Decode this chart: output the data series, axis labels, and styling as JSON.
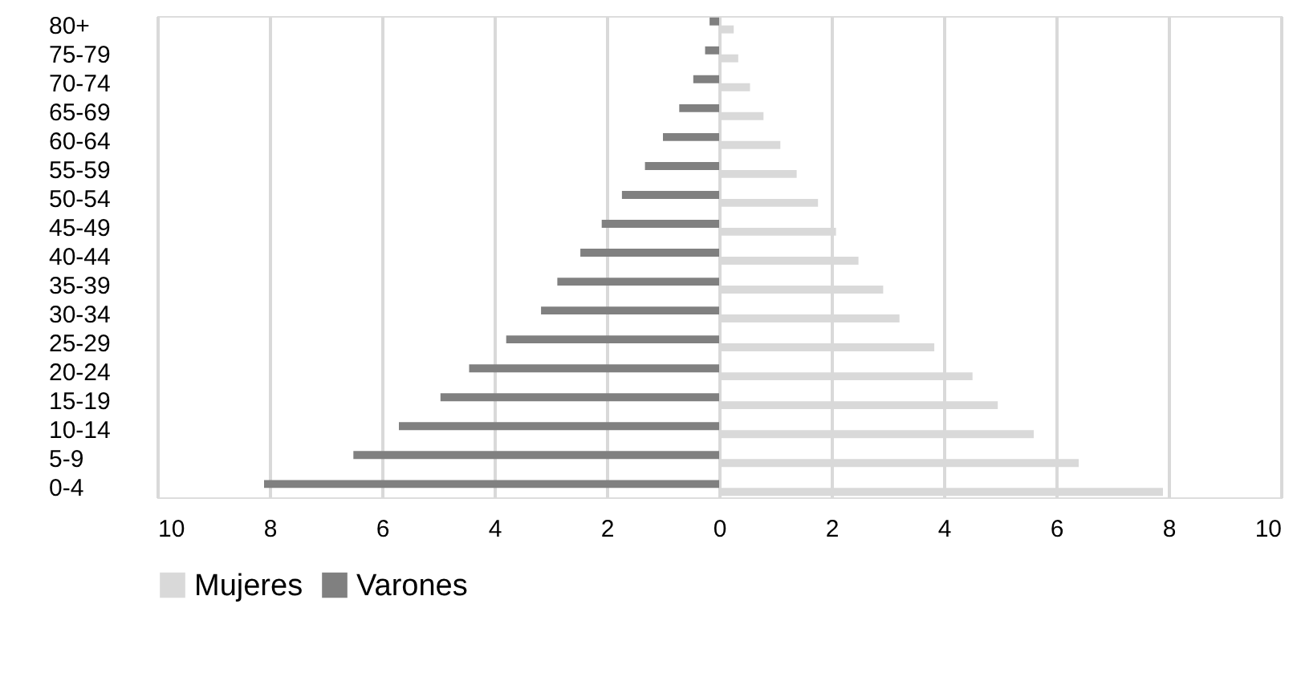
{
  "chart_data": {
    "type": "bar",
    "orientation": "horizontal",
    "categories": [
      "80+",
      "75-79",
      "70-74",
      "65-69",
      "60-64",
      "55-59",
      "50-54",
      "45-49",
      "40-44",
      "35-39",
      "30-34",
      "25-29",
      "20-24",
      "15-19",
      "10-14",
      "5-9",
      "0-4"
    ],
    "series": [
      {
        "name": "Mujeres",
        "color": "#d9d9d9",
        "values": [
          0.26,
          0.34,
          0.55,
          0.79,
          1.09,
          1.38,
          1.76,
          2.08,
          2.48,
          2.92,
          3.21,
          3.83,
          4.51,
          4.96,
          5.6,
          6.4,
          7.9
        ]
      },
      {
        "name": "Varones",
        "color": "#808080",
        "values": [
          -0.17,
          -0.25,
          -0.46,
          -0.71,
          -1.0,
          -1.32,
          -1.73,
          -2.09,
          -2.47,
          -2.88,
          -3.17,
          -3.79,
          -4.45,
          -4.96,
          -5.7,
          -6.51,
          -8.1
        ]
      }
    ],
    "xlim": [
      -10,
      10
    ],
    "xticks": [
      {
        "value": -10,
        "label": "10"
      },
      {
        "value": -8,
        "label": "8"
      },
      {
        "value": -6,
        "label": "6"
      },
      {
        "value": -4,
        "label": "4"
      },
      {
        "value": -2,
        "label": "2"
      },
      0,
      2,
      4,
      6,
      8,
      10
    ],
    "grid": "x",
    "legend": "bottom"
  }
}
